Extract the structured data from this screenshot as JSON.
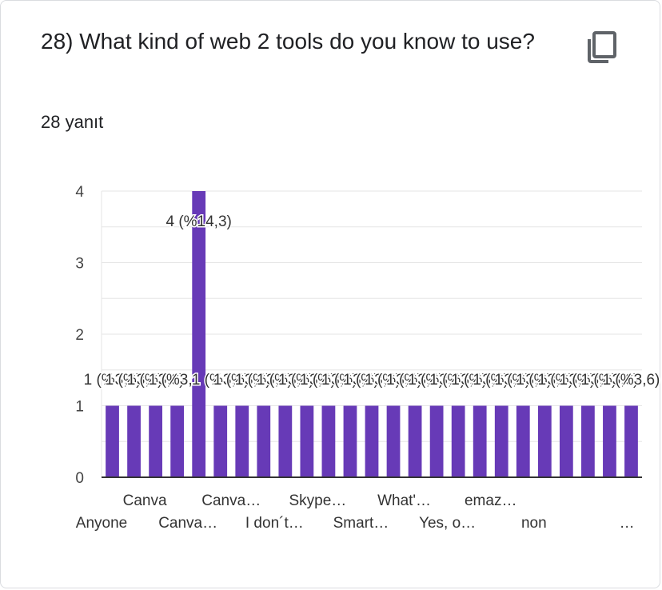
{
  "question": {
    "title": "28) What kind of web 2 tools do you know to use?",
    "response_count": "28 yanıt"
  },
  "colors": {
    "bar": "#673ab7",
    "grid": "#e6e6e6",
    "axis": "#333333",
    "text": "#202124"
  },
  "chart_data": {
    "type": "bar",
    "title": "",
    "xlabel": "",
    "ylabel": "",
    "ylim": [
      0,
      4
    ],
    "yticks": [
      "0",
      "1",
      "2",
      "3",
      "4"
    ],
    "categories": [
      "Anyone",
      "",
      "Canva",
      "",
      "Canva…",
      "",
      "Canva…",
      "",
      "I don´t…",
      "",
      "Skype…",
      "",
      "Smart…",
      "",
      "What'…",
      "",
      "Yes, o…",
      "",
      "emaz…",
      "",
      "non",
      "",
      "",
      "",
      "…"
    ],
    "values": [
      1,
      1,
      1,
      1,
      4,
      1,
      1,
      1,
      1,
      1,
      1,
      1,
      1,
      1,
      1,
      1,
      1,
      1,
      1,
      1,
      1,
      1,
      1,
      1,
      1
    ],
    "data_labels": [
      "1 (%3,6)",
      "1 (%3,6)",
      "1 (%3,6)",
      "1 (%3,6)",
      "4 (%14,3)",
      "1 (%3,6)",
      "1 (%3,6)",
      "1 (%3,6)",
      "1 (%3,6)",
      "1 (%3,6)",
      "1 (%3,6)",
      "1 (%3,6)",
      "1 (%3,6)",
      "1 (%3,6)",
      "1 (%3,6)",
      "1 (%3,6)",
      "1 (%3,6)",
      "1 (%3,6)",
      "1 (%3,6)",
      "1 (%3,6)",
      "1 (%3,6)",
      "1 (%3,6)",
      "1 (%3,6)",
      "1 (%3,6)",
      "1 (%3,6)"
    ]
  }
}
